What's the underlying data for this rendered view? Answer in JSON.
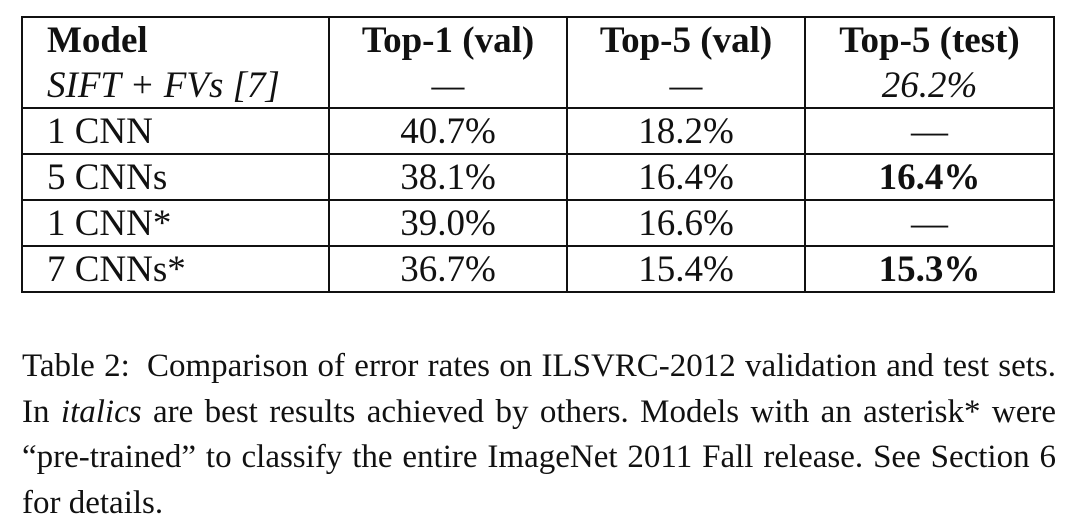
{
  "table": {
    "headers": [
      "Model",
      "Top-1 (val)",
      "Top-5 (val)",
      "Top-5 (test)"
    ],
    "rows": [
      {
        "model": "SIFT + FVs [7]",
        "top1_val": "—",
        "top5_val": "—",
        "top5_test": "26.2%"
      },
      {
        "model": "1 CNN",
        "top1_val": "40.7%",
        "top5_val": "18.2%",
        "top5_test": "—"
      },
      {
        "model": "5 CNNs",
        "top1_val": "38.1%",
        "top5_val": "16.4%",
        "top5_test": "16.4%"
      },
      {
        "model": "1 CNN*",
        "top1_val": "39.0%",
        "top5_val": "16.6%",
        "top5_test": "—"
      },
      {
        "model": "7 CNNs*",
        "top1_val": "36.7%",
        "top5_val": "15.4%",
        "top5_test": "15.3%"
      }
    ]
  },
  "caption": {
    "number": "Table 2:",
    "part1": "Comparison of error rates on ILSVRC-2012 validation and test sets. In ",
    "emphasis": "italics",
    "part2": " are best results achieved by others. Models with an asterisk* were “pre-trained” to classify the entire ImageNet 2011 Fall release. See Section 6 for details."
  }
}
